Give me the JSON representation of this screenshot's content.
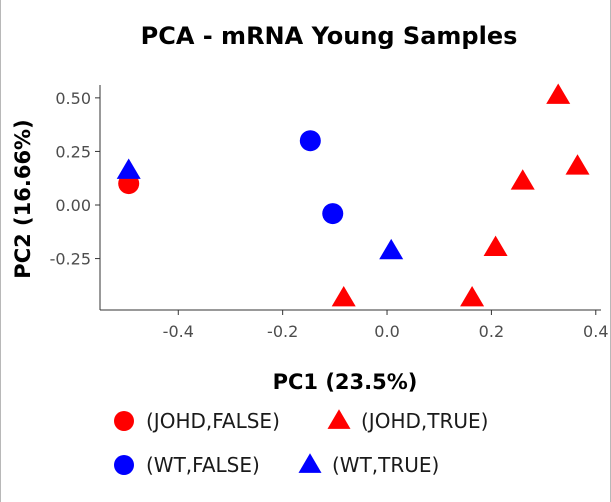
{
  "chart_data": {
    "type": "scatter",
    "title": "PCA - mRNA Young Samples",
    "xlabel": "PC1 (23.5%)",
    "ylabel": "PC2 (16.66%)",
    "xlim": [
      -0.55,
      0.41
    ],
    "ylim": [
      -0.49,
      0.56
    ],
    "xticks": [
      -0.4,
      -0.2,
      0.0,
      0.2,
      0.4
    ],
    "xtick_labels": [
      "-0.4",
      "-0.2",
      "0.0",
      "0.2",
      "0.4"
    ],
    "yticks": [
      -0.25,
      0.0,
      0.25,
      0.5
    ],
    "ytick_labels": [
      "-0.25",
      "0.00",
      "0.25",
      "0.50"
    ],
    "grid": false,
    "legend_position": "bottom",
    "series": [
      {
        "name": "(JOHD,FALSE)",
        "color": "#ff0000",
        "marker": "circle",
        "points": [
          {
            "x": -0.495,
            "y": 0.1
          }
        ]
      },
      {
        "name": "(JOHD,TRUE)",
        "color": "#ff0000",
        "marker": "triangle",
        "points": [
          {
            "x": 0.328,
            "y": 0.51
          },
          {
            "x": 0.365,
            "y": 0.18
          },
          {
            "x": 0.26,
            "y": 0.11
          },
          {
            "x": 0.208,
            "y": -0.2
          },
          {
            "x": -0.083,
            "y": -0.435
          },
          {
            "x": 0.163,
            "y": -0.435
          }
        ]
      },
      {
        "name": "(WT,FALSE)",
        "color": "#0000ff",
        "marker": "circle",
        "points": [
          {
            "x": -0.147,
            "y": 0.3
          },
          {
            "x": -0.104,
            "y": -0.04
          }
        ]
      },
      {
        "name": "(WT,TRUE)",
        "color": "#0000ff",
        "marker": "triangle",
        "points": [
          {
            "x": -0.495,
            "y": 0.16
          },
          {
            "x": 0.008,
            "y": -0.215
          }
        ]
      }
    ]
  }
}
